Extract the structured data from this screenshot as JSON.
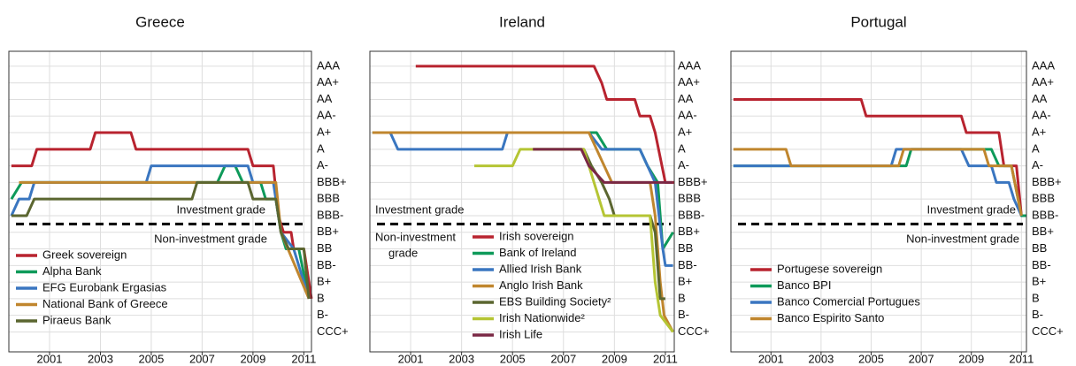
{
  "chart_data": [
    {
      "type": "line",
      "title": "Greece",
      "xlim": [
        1999.4,
        2011.3
      ],
      "xticks": [
        2001,
        2003,
        2005,
        2007,
        2009,
        2011
      ],
      "ylim": [
        -0.2,
        17.9
      ],
      "yticks": [
        {
          "value": 17,
          "label": "AAA"
        },
        {
          "value": 16,
          "label": "AA+"
        },
        {
          "value": 15,
          "label": "AA"
        },
        {
          "value": 14,
          "label": "AA-"
        },
        {
          "value": 13,
          "label": "A+"
        },
        {
          "value": 12,
          "label": "A"
        },
        {
          "value": 11,
          "label": "A-"
        },
        {
          "value": 10,
          "label": "BBB+"
        },
        {
          "value": 9,
          "label": "BBB"
        },
        {
          "value": 8,
          "label": "BBB-"
        },
        {
          "value": 7,
          "label": "BB+"
        },
        {
          "value": 6,
          "label": "BB"
        },
        {
          "value": 5,
          "label": "BB-"
        },
        {
          "value": 4,
          "label": "B+"
        },
        {
          "value": 3,
          "label": "B"
        },
        {
          "value": 2,
          "label": "B-"
        },
        {
          "value": 1,
          "label": "CCC+"
        }
      ],
      "grid": true,
      "threshold": 7.5,
      "annotations": {
        "above": [
          "Investment grade"
        ],
        "below": [
          "Non-investment grade"
        ]
      },
      "legend": "lower left",
      "series": [
        {
          "name": "Greek sovereign",
          "color": "#b8232f",
          "x": [
            1999.5,
            2000.3,
            2000.5,
            2002.6,
            2002.8,
            2004.2,
            2004.4,
            2008.8,
            2009.0,
            2009.8,
            2010.0,
            2010.2,
            2010.5,
            2010.6,
            2011.0,
            2011.3
          ],
          "values": [
            11,
            11,
            12,
            12,
            13,
            13,
            12,
            12,
            11,
            11,
            8,
            7,
            7,
            6,
            6,
            3
          ]
        },
        {
          "name": "Alpha Bank",
          "color": "#0e9a5a",
          "x": [
            1999.5,
            1999.9,
            2007.6,
            2007.9,
            2008.3,
            2008.6,
            2009.3,
            2009.5,
            2009.9,
            2010.1,
            2010.3,
            2010.8,
            2011.2
          ],
          "values": [
            9,
            10,
            10,
            11,
            11,
            10,
            10,
            9,
            9,
            7,
            6,
            6,
            3
          ]
        },
        {
          "name": "EFG Eurobank Ergasias",
          "color": "#3a76c0",
          "x": [
            1999.5,
            1999.8,
            2000.2,
            2000.4,
            2004.8,
            2005.0,
            2008.8,
            2009.0,
            2009.8,
            2010.1,
            2010.6,
            2011.2
          ],
          "values": [
            8,
            9,
            9,
            10,
            10,
            11,
            11,
            10,
            10,
            7,
            6,
            3
          ]
        },
        {
          "name": "National Bank of Greece",
          "color": "#c0862e",
          "x": [
            1999.8,
            2009.9,
            2010.1,
            2011.2
          ],
          "values": [
            10,
            10,
            7,
            3
          ]
        },
        {
          "name": "Piraeus Bank",
          "color": "#5b6630",
          "x": [
            1999.5,
            2000.1,
            2000.4,
            2006.6,
            2006.8,
            2008.8,
            2009.0,
            2009.9,
            2010.1,
            2010.4,
            2011.0,
            2011.2
          ],
          "values": [
            8,
            8,
            9,
            9,
            10,
            10,
            9,
            9,
            7,
            6,
            6,
            3
          ]
        }
      ]
    },
    {
      "type": "line",
      "title": "Ireland",
      "xlim": [
        1999.4,
        2011.35
      ],
      "xticks": [
        2001,
        2003,
        2005,
        2007,
        2009,
        2011
      ],
      "ylim": [
        -0.2,
        17.9
      ],
      "yticks": [
        {
          "value": 17,
          "label": "AAA"
        },
        {
          "value": 16,
          "label": "AA+"
        },
        {
          "value": 15,
          "label": "AA"
        },
        {
          "value": 14,
          "label": "AA-"
        },
        {
          "value": 13,
          "label": "A+"
        },
        {
          "value": 12,
          "label": "A"
        },
        {
          "value": 11,
          "label": "A-"
        },
        {
          "value": 10,
          "label": "BBB+"
        },
        {
          "value": 9,
          "label": "BBB"
        },
        {
          "value": 8,
          "label": "BBB-"
        },
        {
          "value": 7,
          "label": "BB+"
        },
        {
          "value": 6,
          "label": "BB"
        },
        {
          "value": 5,
          "label": "BB-"
        },
        {
          "value": 4,
          "label": "B+"
        },
        {
          "value": 3,
          "label": "B"
        },
        {
          "value": 2,
          "label": "B-"
        },
        {
          "value": 1,
          "label": "CCC+"
        }
      ],
      "grid": true,
      "threshold": 7.5,
      "annotations": {
        "above": [
          "Investment grade"
        ],
        "below": [
          "Non-investment",
          "grade"
        ]
      },
      "legend": "lower center",
      "series": [
        {
          "name": "Irish sovereign",
          "color": "#b8232f",
          "x": [
            2001.2,
            2008.2,
            2008.5,
            2008.7,
            2009.8,
            2010.0,
            2010.4,
            2010.6,
            2011.0,
            2011.35
          ],
          "values": [
            17,
            17,
            16,
            15,
            15,
            14,
            14,
            13,
            10,
            10
          ]
        },
        {
          "name": "Bank of Ireland",
          "color": "#0e9a5a",
          "x": [
            1999.5,
            2008.3,
            2008.7,
            2010.0,
            2010.3,
            2010.7,
            2010.9,
            2011.3
          ],
          "values": [
            13,
            13,
            12,
            12,
            11,
            10,
            6,
            7
          ]
        },
        {
          "name": "Allied Irish Bank",
          "color": "#3a76c0",
          "x": [
            1999.5,
            2000.2,
            2000.5,
            2004.6,
            2004.8,
            2008.0,
            2008.5,
            2010.0,
            2010.3,
            2010.6,
            2010.9,
            2011.0,
            2011.3
          ],
          "values": [
            13,
            13,
            12,
            12,
            13,
            13,
            12,
            12,
            11,
            10,
            6,
            5,
            5
          ]
        },
        {
          "name": "Anglo Irish Bank",
          "color": "#c0862e",
          "x": [
            1999.5,
            2008.0,
            2008.3,
            2008.6,
            2008.9,
            2010.4,
            2010.6,
            2010.8,
            2010.95,
            2011.3
          ],
          "values": [
            13,
            13,
            12,
            11,
            10,
            10,
            8,
            4,
            2,
            1
          ]
        },
        {
          "name": "EBS Building Society²",
          "color": "#5b6630",
          "x": [
            2005.8,
            2007.8,
            2008.1,
            2008.5,
            2008.8,
            2009.0,
            2010.4,
            2010.6,
            2010.8,
            2011.0
          ],
          "values": [
            12,
            12,
            11,
            10,
            9,
            8,
            8,
            7,
            3,
            3
          ]
        },
        {
          "name": "Irish Nationwide²",
          "color": "#b5c534",
          "x": [
            2003.5,
            2005.0,
            2005.3,
            2007.8,
            2008.2,
            2008.6,
            2010.4,
            2010.6,
            2010.8,
            2011.3
          ],
          "values": [
            11,
            11,
            12,
            12,
            10,
            8,
            8,
            4,
            2,
            1
          ]
        },
        {
          "name": "Irish Life",
          "color": "#7a2845",
          "x": [
            2005.8,
            2007.7,
            2008.0,
            2008.6,
            2011.3
          ],
          "values": [
            12,
            12,
            11,
            10,
            10
          ]
        }
      ]
    },
    {
      "type": "line",
      "title": "Portugal",
      "xlim": [
        1999.4,
        2011.2
      ],
      "xticks": [
        2001,
        2003,
        2005,
        2007,
        2009,
        2011
      ],
      "ylim": [
        -0.2,
        17.9
      ],
      "yticks": [
        {
          "value": 17,
          "label": "AAA"
        },
        {
          "value": 16,
          "label": "AA+"
        },
        {
          "value": 15,
          "label": "AA"
        },
        {
          "value": 14,
          "label": "AA-"
        },
        {
          "value": 13,
          "label": "A+"
        },
        {
          "value": 12,
          "label": "A"
        },
        {
          "value": 11,
          "label": "A-"
        },
        {
          "value": 10,
          "label": "BBB+"
        },
        {
          "value": 9,
          "label": "BBB"
        },
        {
          "value": 8,
          "label": "BBB-"
        },
        {
          "value": 7,
          "label": "BB+"
        },
        {
          "value": 6,
          "label": "BB"
        },
        {
          "value": 5,
          "label": "BB-"
        },
        {
          "value": 4,
          "label": "B+"
        },
        {
          "value": 3,
          "label": "B"
        },
        {
          "value": 2,
          "label": "B-"
        },
        {
          "value": 1,
          "label": "CCC+"
        }
      ],
      "grid": true,
      "threshold": 7.5,
      "annotations": {
        "above": [
          "Investment grade"
        ],
        "below": [
          "Non-investment grade"
        ]
      },
      "legend": "lower left",
      "series": [
        {
          "name": "Portugese sovereign",
          "color": "#b8232f",
          "x": [
            1999.5,
            2004.6,
            2004.8,
            2008.6,
            2008.8,
            2010.1,
            2010.3,
            2010.8,
            2011.0,
            2011.2
          ],
          "values": [
            15,
            15,
            14,
            14,
            13,
            13,
            11,
            11,
            8,
            8
          ]
        },
        {
          "name": "Banco BPI",
          "color": "#0e9a5a",
          "x": [
            1999.5,
            2006.4,
            2006.6,
            2009.8,
            2010.1,
            2010.6,
            2011.0,
            2011.2
          ],
          "values": [
            11,
            11,
            12,
            12,
            11,
            11,
            8,
            8
          ]
        },
        {
          "name": "Banco Comercial Portugues",
          "color": "#3a76c0",
          "x": [
            1999.5,
            2005.8,
            2006.0,
            2008.6,
            2008.9,
            2009.8,
            2010.0,
            2010.5,
            2010.7,
            2011.0
          ],
          "values": [
            11,
            11,
            12,
            12,
            11,
            11,
            10,
            10,
            9,
            8
          ]
        },
        {
          "name": "Banco Espirito Santo",
          "color": "#c0862e",
          "x": [
            1999.5,
            2001.6,
            2001.8,
            2006.1,
            2006.3,
            2009.5,
            2009.7,
            2010.6,
            2011.0
          ],
          "values": [
            12,
            12,
            11,
            11,
            12,
            12,
            11,
            11,
            8
          ]
        }
      ]
    }
  ]
}
